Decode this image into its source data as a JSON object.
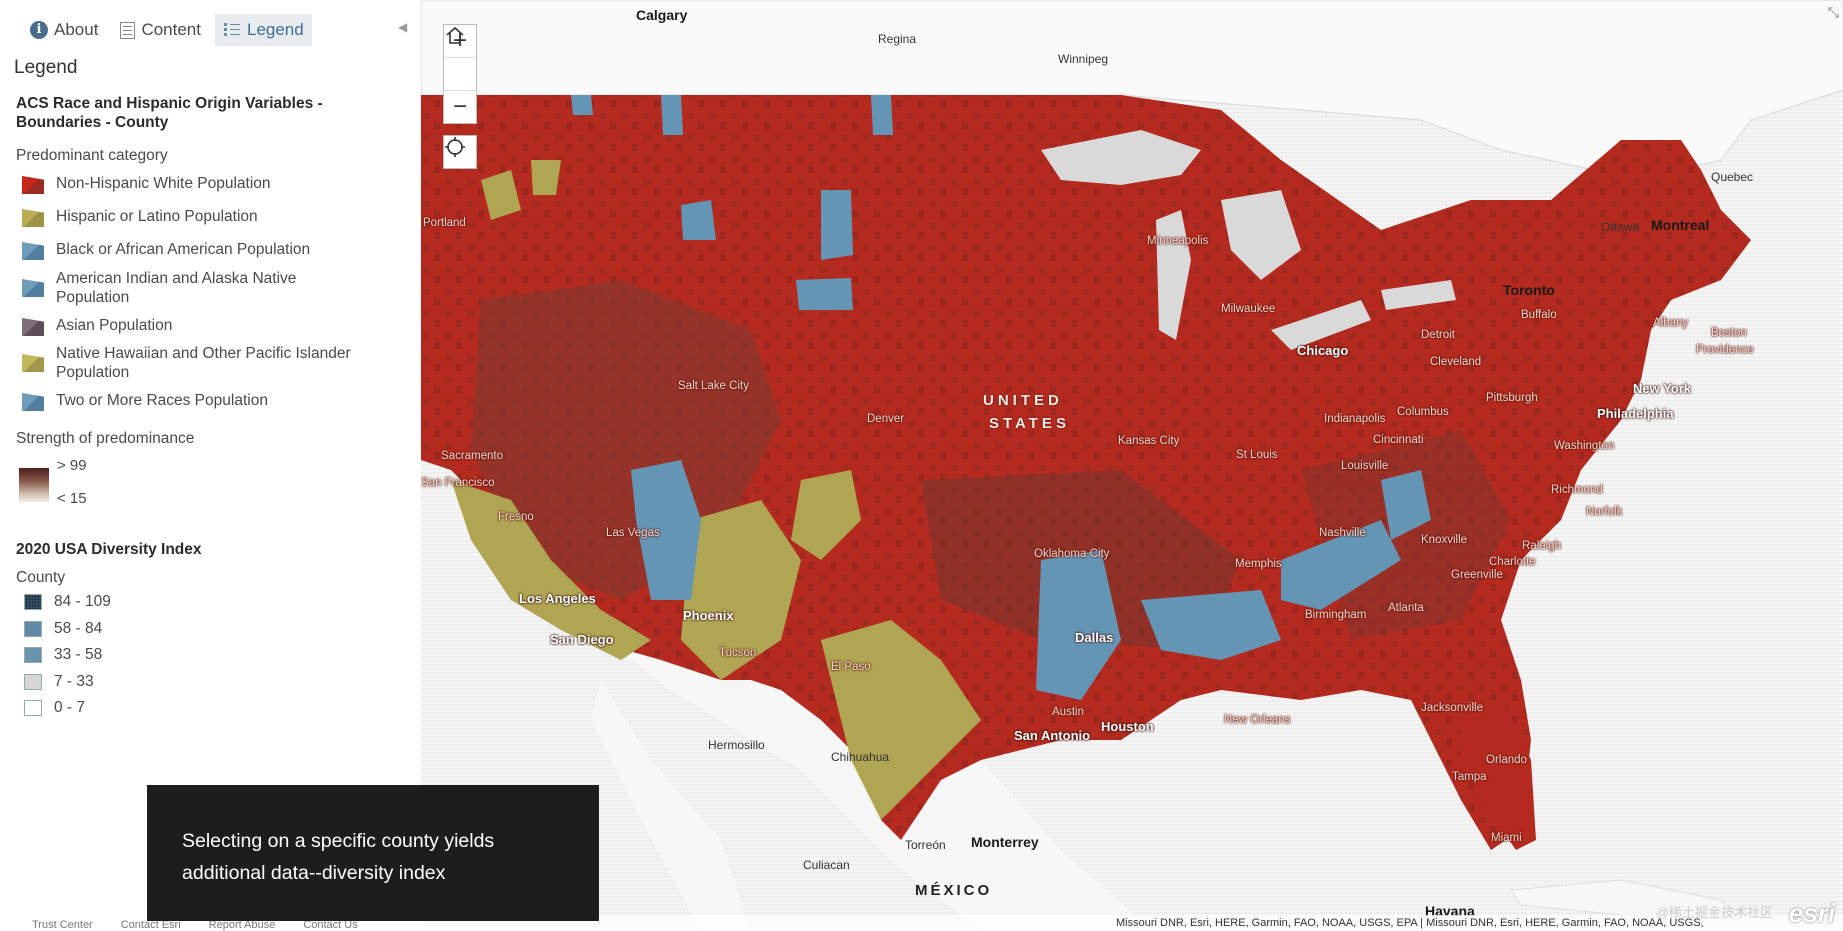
{
  "tabs": [
    {
      "label": "About",
      "icon": "info-icon"
    },
    {
      "label": "Content",
      "icon": "content-icon"
    },
    {
      "label": "Legend",
      "icon": "legend-icon",
      "active": true
    }
  ],
  "legend": {
    "heading": "Legend",
    "layer1": {
      "title": "ACS Race and Hispanic Origin Variables - Boundaries - County",
      "category_label": "Predominant category",
      "items": [
        {
          "label": "Non-Hispanic White Population",
          "color": "#b82a1f"
        },
        {
          "label": "Hispanic or Latino Population",
          "color": "#b0a552"
        },
        {
          "label": "Black or African American Population",
          "color": "#6495b5"
        },
        {
          "label": "American Indian and Alaska Native Population",
          "color": "#6495b5"
        },
        {
          "label": "Asian Population",
          "color": "#6e5f68"
        },
        {
          "label": "Native Hawaiian and Other Pacific Islander Population",
          "color": "#b8ad56"
        },
        {
          "label": "Two or More Races Population",
          "color": "#6495b5"
        }
      ],
      "strength_label": "Strength of predominance",
      "strength_high": "> 99",
      "strength_low": "< 15"
    },
    "layer2": {
      "title": "2020 USA Diversity Index",
      "sub": "County",
      "classes": [
        "84 - 109",
        "58 - 84",
        "33 - 58",
        "7 - 33",
        "0 - 7"
      ]
    }
  },
  "footer_links": [
    "Trust Center",
    "Contact Esri",
    "Report Abuse",
    "Contact Us"
  ],
  "caption": {
    "line1": "Selecting on a specific county yields",
    "line2": "additional data--diversity index"
  },
  "map": {
    "attribution": "Missouri DNR, Esri, HERE, Garmin, FAO, NOAA, USGS, EPA | Missouri DNR, Esri, HERE, Garmin, FAO, NOAA, USGS,",
    "logo": "esri",
    "watermark": "@稀土掘金技术社区",
    "labels": {
      "calgary": "Calgary",
      "regina": "Regina",
      "winnipeg": "Winnipeg",
      "quebec": "Quebec",
      "ottawa": "Ottawa",
      "montreal": "Montreal",
      "toronto": "Toronto",
      "portland": "Portland",
      "minneapolis": "Minneapolis",
      "milwaukee": "Milwaukee",
      "chicago": "Chicago",
      "detroit": "Detroit",
      "buffalo": "Buffalo",
      "albany": "Albany",
      "boston": "Boston",
      "providence": "Providence",
      "cleveland": "Cleveland",
      "pittsburgh": "Pittsburgh",
      "new_york": "New York",
      "philadelphia": "Philadelphia",
      "salt_lake": "Salt Lake City",
      "denver": "Denver",
      "united": "UNITED",
      "states": "STATES",
      "kansas_city": "Kansas City",
      "indianapolis": "Indianapolis",
      "columbus": "Columbus",
      "cincinnati": "Cincinnati",
      "st_louis": "St Louis",
      "louisville": "Louisville",
      "washington": "Washington",
      "sacramento": "Sacramento",
      "san_francisco": "San Francisco",
      "richmond": "Richmond",
      "norfolk": "Norfolk",
      "fresno": "Fresno",
      "las_vegas": "Las Vegas",
      "nashville": "Nashville",
      "knoxville": "Knoxville",
      "raleigh": "Raleigh",
      "oklahoma_city": "Oklahoma City",
      "memphis": "Memphis",
      "charlotte": "Charlotte",
      "greenville": "Greenville",
      "los_angeles": "Los Angeles",
      "phoenix": "Phoenix",
      "birmingham": "Birmingham",
      "atlanta": "Atlanta",
      "san_diego": "San Diego",
      "tucson": "Tucson",
      "dallas": "Dallas",
      "el_paso": "El Paso",
      "austin": "Austin",
      "houston": "Houston",
      "new_orleans": "New Orleans",
      "jacksonville": "Jacksonville",
      "san_antonio": "San Antonio",
      "hermosillo": "Hermosillo",
      "chihuahua": "Chihuahua",
      "orlando": "Orlando",
      "tampa": "Tampa",
      "torreon": "Torreón",
      "monterrey": "Monterrey",
      "culiacan": "Culiacan",
      "miami": "Miami",
      "mexico": "MÉXICO",
      "havana": "Havana"
    }
  }
}
